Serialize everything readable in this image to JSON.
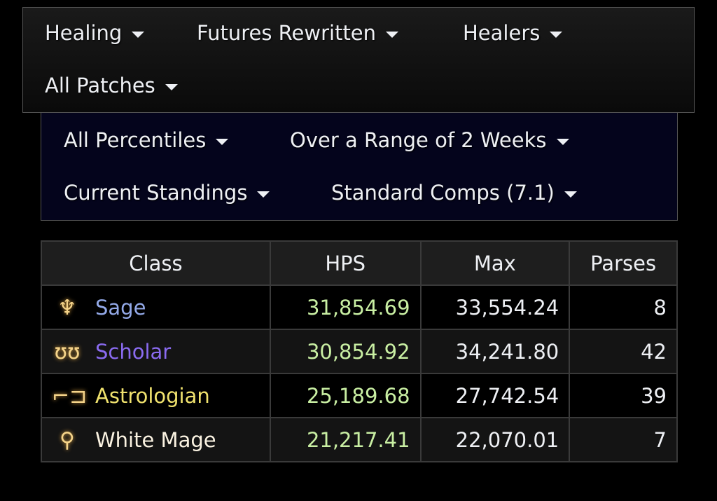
{
  "filters_top": [
    {
      "label": "Healing"
    },
    {
      "label": "Futures Rewritten"
    },
    {
      "label": "Healers"
    },
    {
      "label": "All Patches"
    }
  ],
  "filters_sub": [
    {
      "label": "All Percentiles"
    },
    {
      "label": "Over a Range of 2 Weeks"
    },
    {
      "label": "Current Standings"
    },
    {
      "label": "Standard Comps (7.1)"
    }
  ],
  "table": {
    "headers": [
      "Class",
      "HPS",
      "Max",
      "Parses"
    ],
    "rows": [
      {
        "icon": "sage-icon",
        "glyph": "♆",
        "name": "Sage",
        "color": "#93a9e8",
        "hps": "31,854.69",
        "max": "33,554.24",
        "parses": "8"
      },
      {
        "icon": "scholar-icon",
        "glyph": "ʊʊ",
        "name": "Scholar",
        "color": "#8a6bf0",
        "hps": "30,854.92",
        "max": "34,241.80",
        "parses": "42"
      },
      {
        "icon": "astrologian-icon",
        "glyph": "⌐⊐",
        "name": "Astrologian",
        "color": "#f0e26e",
        "hps": "25,189.68",
        "max": "27,742.54",
        "parses": "39"
      },
      {
        "icon": "white-mage-icon",
        "glyph": "⚲",
        "name": "White Mage",
        "color": "#fbf3e2",
        "hps": "21,217.41",
        "max": "22,070.01",
        "parses": "7"
      }
    ]
  }
}
